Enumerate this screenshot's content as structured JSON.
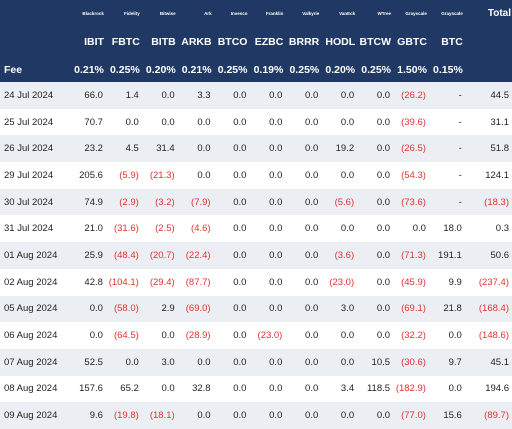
{
  "header": {
    "issuers": [
      "Blackrock",
      "Fidelity",
      "Bitwise",
      "Ark",
      "Invesco",
      "Franklin",
      "Valkyrie",
      "VanEck",
      "WTree",
      "Grayscale",
      "Grayscale"
    ],
    "total_label": "Total",
    "tickers": [
      "IBIT",
      "FBTC",
      "BITB",
      "ARKB",
      "BTCO",
      "EZBC",
      "BRRR",
      "HODL",
      "BTCW",
      "GBTC",
      "BTC"
    ],
    "fee_label": "Fee",
    "fees": [
      "0.21%",
      "0.25%",
      "0.20%",
      "0.21%",
      "0.25%",
      "0.19%",
      "0.25%",
      "0.20%",
      "0.25%",
      "1.50%",
      "0.15%"
    ]
  },
  "rows": [
    {
      "date": "24 Jul 2024",
      "values": [
        "66.0",
        "1.4",
        "0.0",
        "3.3",
        "0.0",
        "0.0",
        "0.0",
        "0.0",
        "0.0",
        "(26.2)",
        "-"
      ],
      "total": "44.5"
    },
    {
      "date": "25 Jul 2024",
      "values": [
        "70.7",
        "0.0",
        "0.0",
        "0.0",
        "0.0",
        "0.0",
        "0.0",
        "0.0",
        "0.0",
        "(39.6)",
        "-"
      ],
      "total": "31.1"
    },
    {
      "date": "26 Jul 2024",
      "values": [
        "23.2",
        "4.5",
        "31.4",
        "0.0",
        "0.0",
        "0.0",
        "0.0",
        "19.2",
        "0.0",
        "(26.5)",
        "-"
      ],
      "total": "51.8"
    },
    {
      "date": "29 Jul 2024",
      "values": [
        "205.6",
        "(5.9)",
        "(21.3)",
        "0.0",
        "0.0",
        "0.0",
        "0.0",
        "0.0",
        "0.0",
        "(54.3)",
        "-"
      ],
      "total": "124.1"
    },
    {
      "date": "30 Jul 2024",
      "values": [
        "74.9",
        "(2.9)",
        "(3.2)",
        "(7.9)",
        "0.0",
        "0.0",
        "0.0",
        "(5.6)",
        "0.0",
        "(73.6)",
        "-"
      ],
      "total": "(18.3)"
    },
    {
      "date": "31 Jul 2024",
      "values": [
        "21.0",
        "(31.6)",
        "(2.5)",
        "(4.6)",
        "0.0",
        "0.0",
        "0.0",
        "0.0",
        "0.0",
        "0.0",
        "18.0"
      ],
      "total": "0.3"
    },
    {
      "date": "01 Aug 2024",
      "values": [
        "25.9",
        "(48.4)",
        "(20.7)",
        "(22.4)",
        "0.0",
        "0.0",
        "0.0",
        "(3.6)",
        "0.0",
        "(71.3)",
        "191.1"
      ],
      "total": "50.6"
    },
    {
      "date": "02 Aug 2024",
      "values": [
        "42.8",
        "(104.1)",
        "(29.4)",
        "(87.7)",
        "0.0",
        "0.0",
        "0.0",
        "(23.0)",
        "0.0",
        "(45.9)",
        "9.9"
      ],
      "total": "(237.4)"
    },
    {
      "date": "05 Aug 2024",
      "values": [
        "0.0",
        "(58.0)",
        "2.9",
        "(69.0)",
        "0.0",
        "0.0",
        "0.0",
        "3.0",
        "0.0",
        "(69.1)",
        "21.8"
      ],
      "total": "(168.4)"
    },
    {
      "date": "06 Aug 2024",
      "values": [
        "0.0",
        "(64.5)",
        "0.0",
        "(28.9)",
        "0.0",
        "(23.0)",
        "0.0",
        "0.0",
        "0.0",
        "(32.2)",
        "0.0"
      ],
      "total": "(148.6)"
    },
    {
      "date": "07 Aug 2024",
      "values": [
        "52.5",
        "0.0",
        "3.0",
        "0.0",
        "0.0",
        "0.0",
        "0.0",
        "0.0",
        "10.5",
        "(30.6)",
        "9.7"
      ],
      "total": "45.1"
    },
    {
      "date": "08 Aug 2024",
      "values": [
        "157.6",
        "65.2",
        "0.0",
        "32.8",
        "0.0",
        "0.0",
        "0.0",
        "3.4",
        "118.5",
        "(182.9)",
        "0.0"
      ],
      "total": "194.6"
    },
    {
      "date": "09 Aug 2024",
      "values": [
        "9.6",
        "(19.8)",
        "(18.1)",
        "0.0",
        "0.0",
        "0.0",
        "0.0",
        "0.0",
        "0.0",
        "(77.0)",
        "15.6"
      ],
      "total": "(89.7)"
    }
  ]
}
